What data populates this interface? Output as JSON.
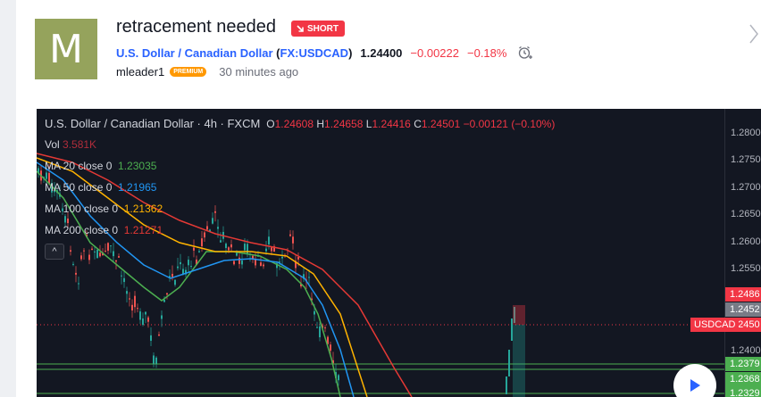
{
  "idea": {
    "avatar_letter": "M",
    "title": "retracement needed",
    "badge": "SHORT",
    "symbol_name": "U.S. Dollar / Canadian Dollar",
    "symbol_ticker": "FX:USDCAD",
    "last_price": "1.24400",
    "change": "−0.00222",
    "change_pct": "−0.18%",
    "author": "mleader1",
    "author_badge": "PREMIUM",
    "published": "30 minutes ago"
  },
  "chart": {
    "header_symbol": "U.S. Dollar / Canadian Dollar · 4h · FXCM",
    "ohlc": {
      "o_label": "O",
      "o": "1.24608",
      "h_label": "H",
      "h": "1.24658",
      "l_label": "L",
      "l": "1.24416",
      "c_label": "C",
      "c": "1.24501",
      "chg": "−0.00121 (−0.10%)"
    },
    "volume": {
      "label": "Vol",
      "value": "3.581K"
    },
    "indicators": [
      {
        "label": "MA 20 close 0",
        "value": "1.23035",
        "color": "#4caf50"
      },
      {
        "label": "MA 50 close 0",
        "value": "1.21965",
        "color": "#2196f3"
      },
      {
        "label": "MA 100 close 0",
        "value": "1.21362",
        "color": "#ffb300"
      },
      {
        "label": "MA 200 close 0",
        "value": "1.21271",
        "color": "#e53935"
      }
    ],
    "collapse_glyph": "^",
    "price_axis": {
      "ticks": [
        "1.2800",
        "1.2750",
        "1.2700",
        "1.2650",
        "1.2600",
        "1.2550",
        "1.2400"
      ],
      "labels": [
        {
          "value": "1.2486",
          "color": "#f23645"
        },
        {
          "value": "1.2452",
          "color": "#787b86"
        },
        {
          "value": "1.2450",
          "color": "#f23645"
        },
        {
          "value": "1.2379",
          "color": "#4caf50"
        },
        {
          "value": "1.2368",
          "color": "#4caf50"
        },
        {
          "value": "1.2329",
          "color": "#4caf50"
        }
      ]
    },
    "symbol_label": "USDCAD",
    "colors": {
      "up": "#26a69a",
      "down": "#ef5350",
      "background": "#131722"
    }
  },
  "icons": {
    "badge_icon": "arrow-down-right-icon",
    "alert_icon": "alarm-clock-plus-icon",
    "next_icon": "chevron-right-icon",
    "play_icon": "play-icon"
  }
}
